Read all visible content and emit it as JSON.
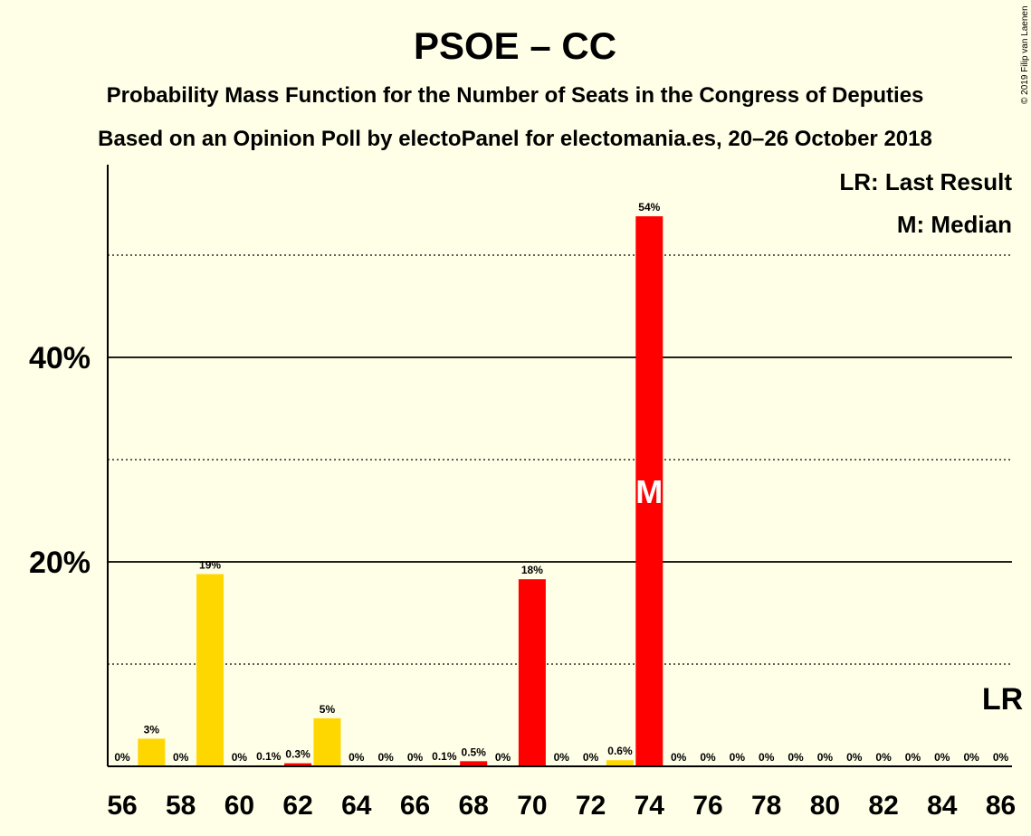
{
  "title": "PSOE – CC",
  "subtitle1": "Probability Mass Function for the Number of Seats in the Congress of Deputies",
  "subtitle2": "Based on an Opinion Poll by electoPanel for electomania.es, 20–26 October 2018",
  "copyright": "© 2019 Filip van Laenen",
  "legend": {
    "last_result": "LR: Last Result",
    "median": "M: Median"
  },
  "colors": {
    "background": "#FFFEE6",
    "majority": "#FF0000",
    "other": "#FFD700"
  },
  "chart_data": {
    "type": "bar",
    "x": [
      56,
      57,
      58,
      59,
      60,
      61,
      62,
      63,
      64,
      65,
      66,
      67,
      68,
      69,
      70,
      71,
      72,
      73,
      74,
      75,
      76,
      77,
      78,
      79,
      80,
      81,
      82,
      83,
      84,
      85,
      86
    ],
    "values": [
      0,
      2.7,
      0,
      18.8,
      0,
      0.1,
      0.3,
      4.7,
      0,
      0,
      0,
      0.1,
      0.5,
      0,
      18.3,
      0,
      0,
      0.6,
      53.8,
      0,
      0,
      0,
      0,
      0,
      0,
      0,
      0,
      0,
      0,
      0,
      0
    ],
    "labels": [
      "0%",
      "3%",
      "0%",
      "19%",
      "0%",
      "0.1%",
      "0.3%",
      "5%",
      "0%",
      "0%",
      "0%",
      "0.1%",
      "0.5%",
      "0%",
      "18%",
      "0%",
      "0%",
      "0.6%",
      "54%",
      "0%",
      "0%",
      "0%",
      "0%",
      "0%",
      "0%",
      "0%",
      "0%",
      "0%",
      "0%",
      "0%",
      "0%"
    ],
    "colors": [
      "other",
      "other",
      "other",
      "other",
      "other",
      "other",
      "majority",
      "other",
      "other",
      "other",
      "other",
      "other",
      "majority",
      "other",
      "majority",
      "other",
      "other",
      "other",
      "majority",
      "other",
      "other",
      "other",
      "other",
      "other",
      "other",
      "other",
      "other",
      "other",
      "other",
      "other",
      "other"
    ],
    "xticks": [
      "56",
      "58",
      "60",
      "62",
      "64",
      "66",
      "68",
      "70",
      "72",
      "74",
      "76",
      "78",
      "80",
      "82",
      "84",
      "86"
    ],
    "yticks": [
      "20%",
      "40%"
    ],
    "ylim": [
      0,
      58
    ],
    "grid_solid": [
      20,
      40
    ],
    "grid_dotted": [
      10,
      30,
      50
    ],
    "median_seat": 74,
    "median_marker": "M",
    "last_result_seat": 86,
    "last_result_marker": "LR",
    "legend_position": "top-right"
  }
}
